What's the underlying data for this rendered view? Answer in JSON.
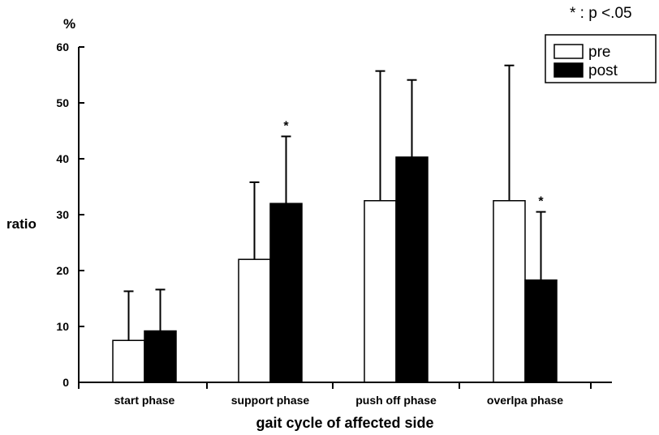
{
  "chart_data": {
    "type": "bar",
    "categories": [
      "start phase",
      "support phase",
      "push off phase",
      "overlpa phase"
    ],
    "series": [
      {
        "name": "pre",
        "values": [
          7.5,
          22,
          32.5,
          32.5
        ],
        "error": [
          8.8,
          13.8,
          23.2,
          24.2
        ],
        "color": "#ffffff"
      },
      {
        "name": "post",
        "values": [
          9.2,
          32,
          40.3,
          18.3
        ],
        "error": [
          7.4,
          12,
          13.8,
          12.2
        ],
        "color": "#000000"
      }
    ],
    "significant": [
      {
        "category": "support phase",
        "series": "post",
        "mark": "*"
      },
      {
        "category": "overlpa phase",
        "series": "post",
        "mark": "*"
      }
    ],
    "xlabel": "gait cycle of affected side",
    "ylabel": "ratio",
    "yunit": "%",
    "ylim": [
      0,
      60
    ],
    "yticks": [
      "0",
      "10",
      "20",
      "30",
      "40",
      "50",
      "60"
    ],
    "grid": false,
    "legend_position": "top-right",
    "note": "* : p <.05"
  }
}
